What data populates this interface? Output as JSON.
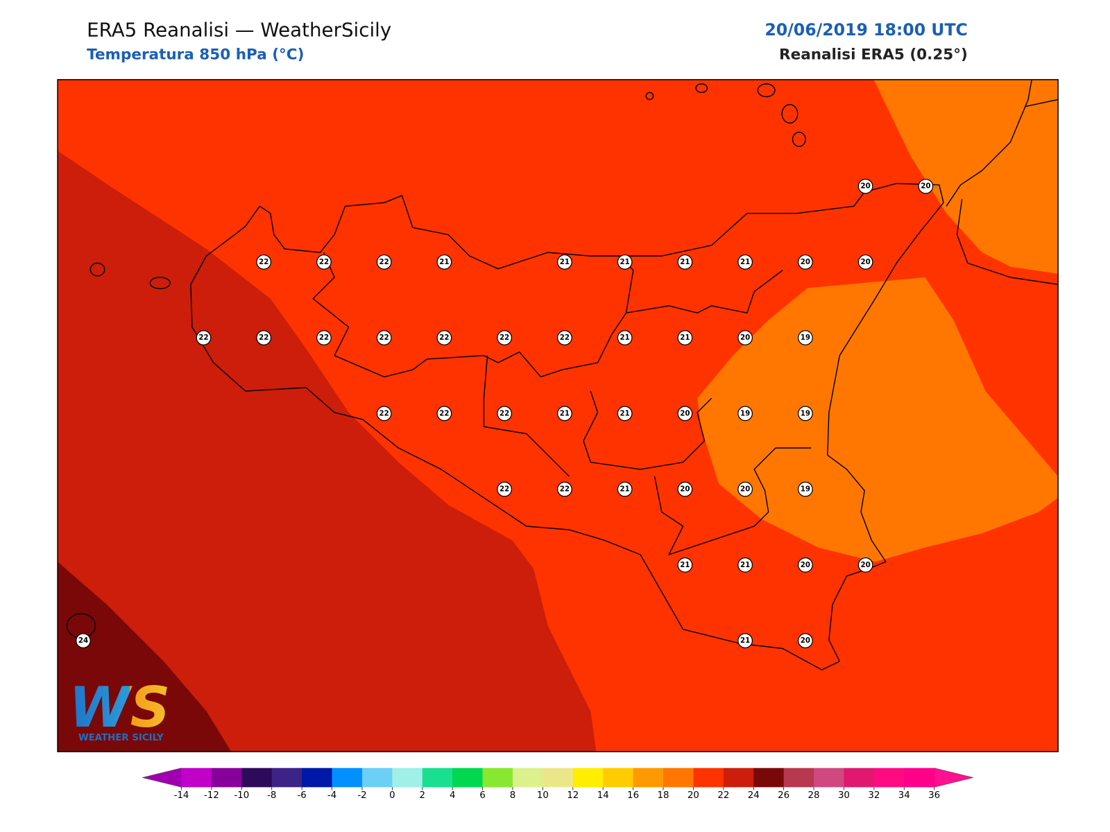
{
  "header": {
    "title": "ERA5 Reanalisi — WeatherSicily",
    "subtitle": "Temperatura 850 hPa (°C)",
    "datetime": "20/06/2019 18:00 UTC",
    "source": "Reanalisi ERA5 (0.25°)"
  },
  "logo": {
    "mark": "WS",
    "text": "WEATHER SICILY"
  },
  "stations": {
    "grid": [
      [
        null,
        null,
        null,
        null,
        null,
        null,
        null,
        null,
        null,
        null,
        null,
        null,
        null,
        20,
        20
      ],
      [
        null,
        null,
        null,
        22,
        22,
        22,
        21,
        null,
        21,
        21,
        21,
        21,
        20,
        20,
        null
      ],
      [
        null,
        null,
        22,
        22,
        22,
        22,
        22,
        22,
        22,
        21,
        21,
        20,
        19,
        null,
        null
      ],
      [
        null,
        null,
        null,
        null,
        null,
        22,
        22,
        22,
        21,
        21,
        20,
        19,
        19,
        null,
        null
      ],
      [
        null,
        null,
        null,
        null,
        null,
        null,
        null,
        22,
        22,
        21,
        20,
        20,
        19,
        null,
        null
      ],
      [
        null,
        null,
        null,
        null,
        null,
        null,
        null,
        null,
        null,
        null,
        21,
        21,
        20,
        20,
        null
      ],
      [
        24,
        null,
        null,
        null,
        null,
        null,
        null,
        null,
        null,
        null,
        null,
        21,
        20,
        null,
        null
      ]
    ]
  },
  "legend": {
    "ticks": [
      -14,
      -12,
      -10,
      -8,
      -6,
      -4,
      -2,
      0,
      2,
      4,
      6,
      8,
      10,
      12,
      14,
      16,
      18,
      20,
      22,
      24,
      26,
      28,
      30,
      32,
      34,
      36
    ],
    "colors": [
      "#c000c8",
      "#88009c",
      "#2d0a5a",
      "#3c2386",
      "#0018a8",
      "#0090ff",
      "#6ccff6",
      "#9ff0e6",
      "#18e090",
      "#00d850",
      "#88e830",
      "#dcf08c",
      "#ece68a",
      "#ffee00",
      "#ffcc00",
      "#ff9900",
      "#ff7700",
      "#ff3300",
      "#cc1e0a",
      "#7a0808",
      "#b83850",
      "#d04880",
      "#e01870",
      "#ff0a80",
      "#ff0088"
    ],
    "under_color": "#a000b0",
    "over_color": "#ff1090"
  }
}
